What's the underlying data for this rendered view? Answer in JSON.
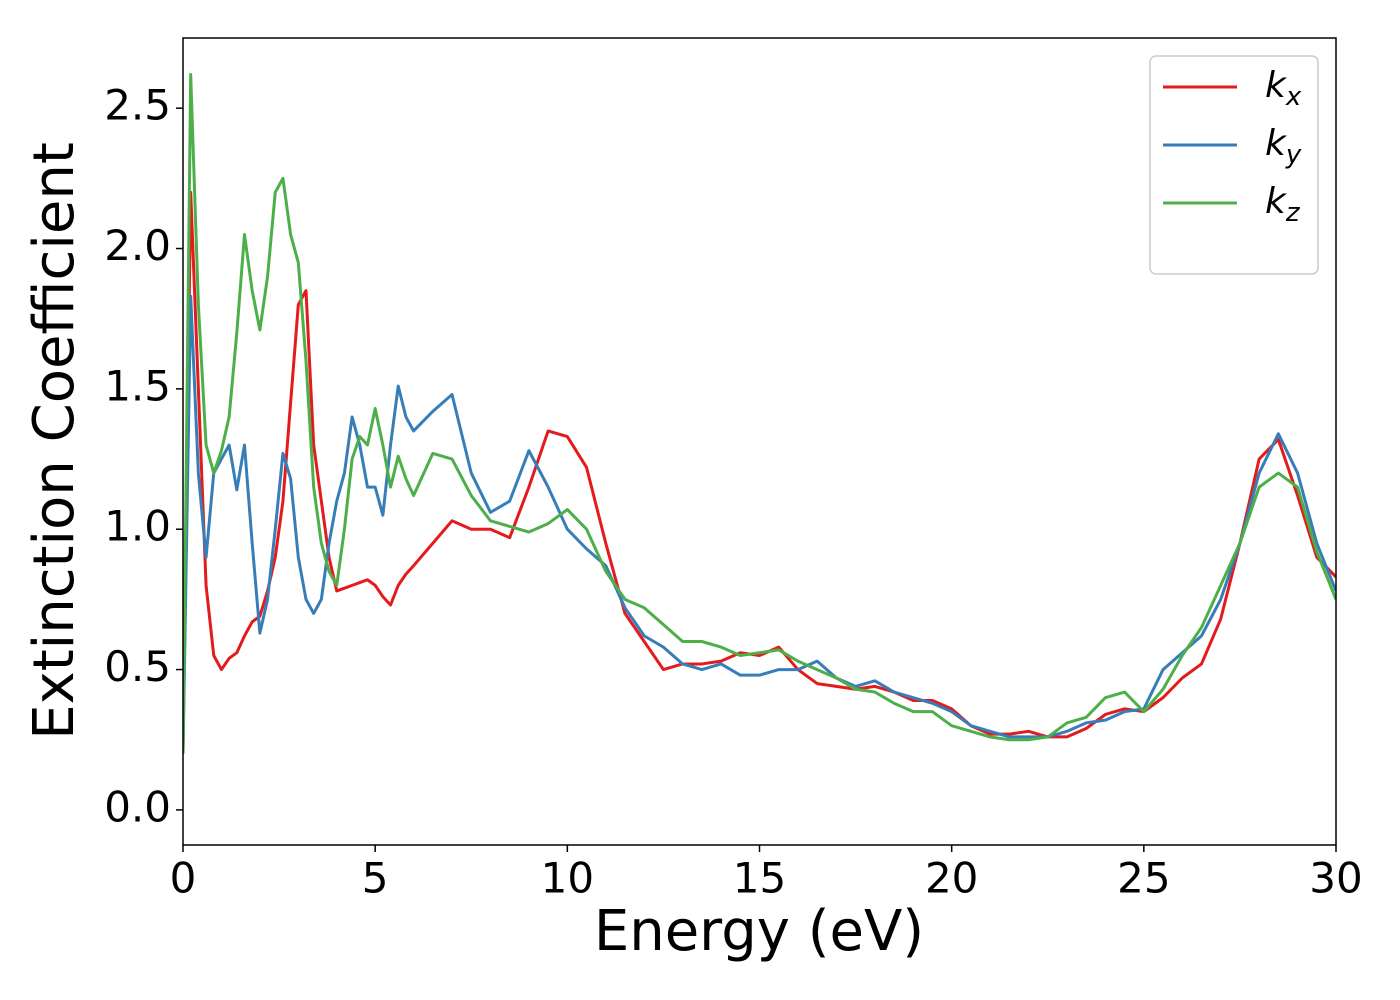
{
  "chart_data": {
    "type": "line",
    "xlabel": "Energy (eV)",
    "ylabel": "Extinction Coefficient",
    "xlim": [
      0,
      30
    ],
    "ylim": [
      -0.125,
      2.75
    ],
    "xticks": [
      0,
      5,
      10,
      15,
      20,
      25,
      30
    ],
    "yticks": [
      {
        "value": 0,
        "label": "0.0"
      },
      0.5,
      {
        "value": 1,
        "label": "1.0"
      },
      1.5,
      {
        "value": 2,
        "label": "2.0"
      },
      2.5
    ],
    "grid": false,
    "legend": "upper right",
    "x": [
      0,
      0.2,
      0.4,
      0.6,
      0.8,
      1.0,
      1.2,
      1.4,
      1.6,
      1.8,
      2.0,
      2.2,
      2.4,
      2.6,
      2.8,
      3.0,
      3.2,
      3.4,
      3.6,
      3.8,
      4.0,
      4.2,
      4.4,
      4.6,
      4.8,
      5.0,
      5.2,
      5.4,
      5.6,
      5.8,
      6.0,
      6.5,
      7.0,
      7.5,
      8.0,
      8.5,
      9.0,
      9.5,
      10.0,
      10.5,
      11.0,
      11.5,
      12.0,
      12.5,
      13.0,
      13.5,
      14.0,
      14.5,
      15.0,
      15.5,
      16.0,
      16.5,
      17.0,
      17.5,
      18.0,
      18.5,
      19.0,
      19.5,
      20.0,
      20.5,
      21.0,
      21.5,
      22.0,
      22.5,
      23.0,
      23.5,
      24.0,
      24.5,
      25.0,
      25.5,
      26.0,
      26.5,
      27.0,
      27.5,
      28.0,
      28.5,
      29.0,
      29.5,
      30.0
    ],
    "series": [
      {
        "name": "kx",
        "color": "#e41a1c",
        "values": [
          0.2,
          2.2,
          1.5,
          0.8,
          0.55,
          0.5,
          0.54,
          0.56,
          0.62,
          0.67,
          0.69,
          0.78,
          0.9,
          1.1,
          1.45,
          1.8,
          1.85,
          1.3,
          1.1,
          0.9,
          0.78,
          0.79,
          0.8,
          0.81,
          0.82,
          0.8,
          0.76,
          0.73,
          0.8,
          0.84,
          0.87,
          0.95,
          1.03,
          1.0,
          1.0,
          0.97,
          1.15,
          1.35,
          1.33,
          1.22,
          0.95,
          0.7,
          0.6,
          0.5,
          0.52,
          0.52,
          0.53,
          0.56,
          0.55,
          0.58,
          0.5,
          0.45,
          0.44,
          0.43,
          0.44,
          0.42,
          0.39,
          0.39,
          0.36,
          0.3,
          0.27,
          0.27,
          0.28,
          0.26,
          0.26,
          0.29,
          0.34,
          0.36,
          0.35,
          0.4,
          0.47,
          0.52,
          0.68,
          0.95,
          1.25,
          1.32,
          1.12,
          0.9,
          0.83
        ]
      },
      {
        "name": "ky",
        "color": "#377eb8",
        "values": [
          0.2,
          1.83,
          1.2,
          0.9,
          1.2,
          1.25,
          1.3,
          1.14,
          1.3,
          0.95,
          0.63,
          0.75,
          1.0,
          1.27,
          1.18,
          0.9,
          0.75,
          0.7,
          0.75,
          0.95,
          1.1,
          1.2,
          1.4,
          1.3,
          1.15,
          1.15,
          1.05,
          1.3,
          1.51,
          1.4,
          1.35,
          1.42,
          1.48,
          1.2,
          1.06,
          1.1,
          1.28,
          1.15,
          1.0,
          0.93,
          0.87,
          0.72,
          0.62,
          0.58,
          0.52,
          0.5,
          0.52,
          0.48,
          0.48,
          0.5,
          0.5,
          0.53,
          0.47,
          0.44,
          0.46,
          0.42,
          0.4,
          0.38,
          0.35,
          0.3,
          0.28,
          0.26,
          0.26,
          0.26,
          0.28,
          0.31,
          0.32,
          0.35,
          0.36,
          0.5,
          0.56,
          0.62,
          0.75,
          0.95,
          1.2,
          1.34,
          1.2,
          0.95,
          0.78
        ]
      },
      {
        "name": "kz",
        "color": "#4daf4a",
        "values": [
          0.2,
          2.62,
          1.8,
          1.3,
          1.2,
          1.28,
          1.4,
          1.7,
          2.05,
          1.85,
          1.71,
          1.9,
          2.2,
          2.25,
          2.05,
          1.95,
          1.6,
          1.15,
          0.95,
          0.85,
          0.8,
          1.0,
          1.25,
          1.33,
          1.3,
          1.43,
          1.3,
          1.15,
          1.26,
          1.18,
          1.12,
          1.27,
          1.25,
          1.12,
          1.03,
          1.01,
          0.99,
          1.02,
          1.07,
          1.0,
          0.85,
          0.75,
          0.72,
          0.66,
          0.6,
          0.6,
          0.58,
          0.55,
          0.56,
          0.57,
          0.53,
          0.5,
          0.47,
          0.43,
          0.42,
          0.38,
          0.35,
          0.35,
          0.3,
          0.28,
          0.26,
          0.25,
          0.25,
          0.26,
          0.31,
          0.33,
          0.4,
          0.42,
          0.35,
          0.43,
          0.55,
          0.65,
          0.8,
          0.95,
          1.15,
          1.2,
          1.15,
          0.92,
          0.75
        ]
      }
    ]
  }
}
